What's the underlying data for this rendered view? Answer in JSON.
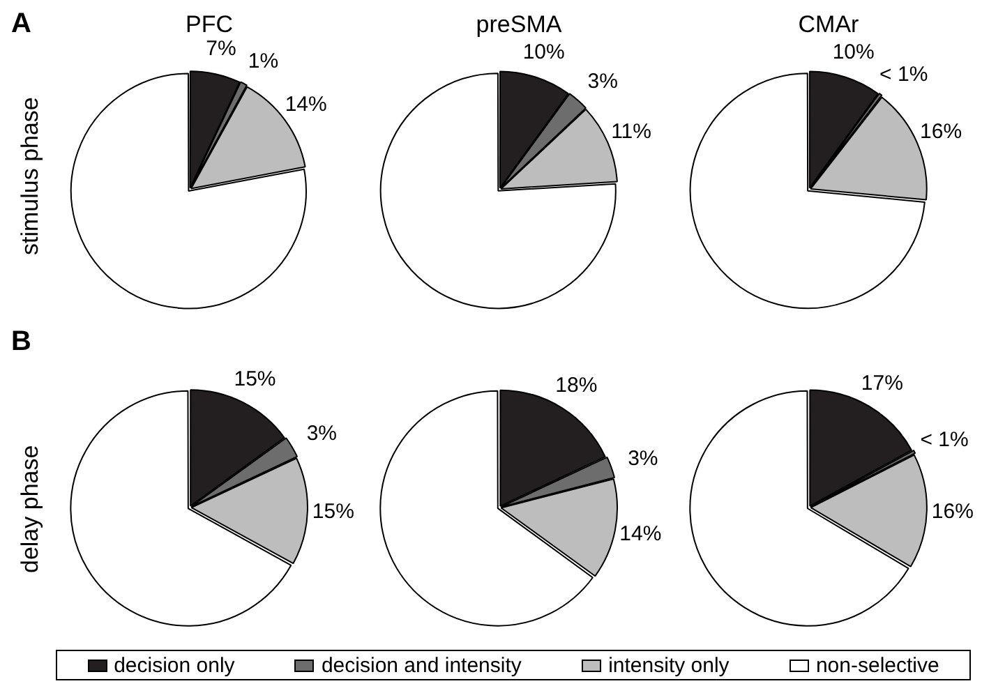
{
  "chart_data": [
    {
      "type": "pie",
      "title": "PFC",
      "ylabel": "stimulus phase",
      "annotations": [
        "A"
      ],
      "legend": "bottom",
      "categories": [
        "decision only",
        "decision and intensity",
        "intensity only",
        "non-selective"
      ],
      "values": [
        7,
        1,
        14,
        78
      ],
      "value_labels": [
        "7%",
        "1%",
        "14%",
        null
      ],
      "colors": [
        "#231f20",
        "#6d6d6d",
        "#bdbdbd",
        "#ffffff"
      ]
    },
    {
      "type": "pie",
      "title": "preSMA",
      "categories": [
        null,
        null,
        null,
        null
      ],
      "values": [
        10,
        3,
        11,
        76
      ],
      "value_labels": [
        "10%",
        "3%",
        "11%",
        null
      ],
      "colors": [
        "#231f20",
        "#6d6d6d",
        "#bdbdbd",
        "#ffffff"
      ]
    },
    {
      "type": "pie",
      "title": "CMAr",
      "categories": [
        null,
        null,
        null,
        null
      ],
      "values": [
        10,
        0.5,
        16,
        73.5
      ],
      "value_labels": [
        "10%",
        "< 1%",
        "16%",
        null
      ],
      "colors": [
        "#231f20",
        "#6d6d6d",
        "#bdbdbd",
        "#ffffff"
      ]
    },
    {
      "type": "pie",
      "ylabel": "delay phase",
      "annotations": [
        "B"
      ],
      "categories": [
        null,
        null,
        null,
        null
      ],
      "values": [
        15,
        3,
        15,
        67
      ],
      "value_labels": [
        "15%",
        "3%",
        "15%",
        null
      ],
      "colors": [
        "#231f20",
        "#6d6d6d",
        "#bdbdbd",
        "#ffffff"
      ]
    },
    {
      "type": "pie",
      "categories": [
        null,
        null,
        null,
        null
      ],
      "values": [
        18,
        3,
        14,
        65
      ],
      "value_labels": [
        "18%",
        "3%",
        "14%",
        null
      ],
      "colors": [
        "#231f20",
        "#6d6d6d",
        "#bdbdbd",
        "#ffffff"
      ]
    },
    {
      "type": "pie",
      "categories": [
        null,
        null,
        null,
        null
      ],
      "values": [
        17,
        0.5,
        16,
        66.5
      ],
      "value_labels": [
        "17%",
        "< 1%",
        "16%",
        null
      ],
      "colors": [
        "#231f20",
        "#6d6d6d",
        "#bdbdbd",
        "#ffffff"
      ]
    }
  ]
}
